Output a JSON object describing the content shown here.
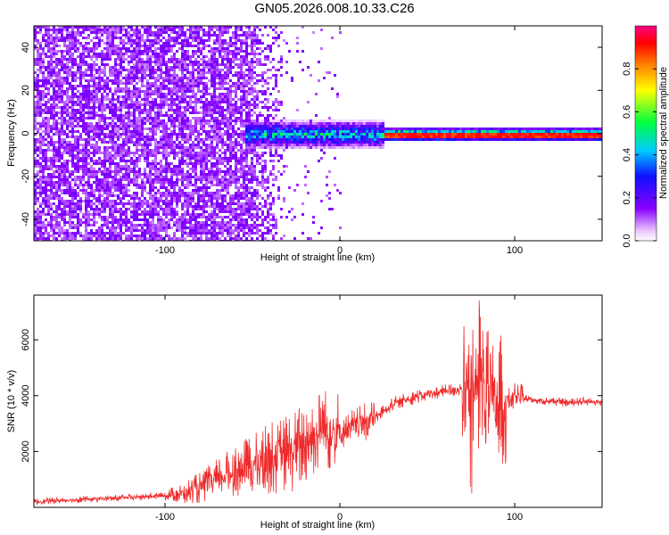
{
  "title": "GN05.2026.008.10.33.C26",
  "chart_data": [
    {
      "type": "heatmap",
      "xlabel": "Height of straight line (km)",
      "ylabel": "Frequency (Hz)",
      "xlim": [
        -175,
        150
      ],
      "ylim": [
        -50,
        50
      ],
      "xticks": [
        -100,
        0,
        100
      ],
      "yticks": [
        -40,
        -20,
        0,
        20,
        40
      ],
      "colorbar": {
        "label": "Normalized spectral amplitude",
        "range": [
          0,
          1
        ],
        "ticks": [
          "0.0",
          "0.2",
          "0.4",
          "0.6",
          "0.8"
        ]
      },
      "ridge_frequency_hz": 0,
      "noise_floor_region_km": [
        -175,
        -30
      ],
      "strong_signal_region_km": [
        20,
        150
      ]
    },
    {
      "type": "line",
      "xlabel": "Height of straight line (km)",
      "ylabel": "SNR (10 * v/v)",
      "xlim": [
        -175,
        150
      ],
      "ylim": [
        0,
        7600
      ],
      "xticks": [
        -100,
        0,
        100
      ],
      "yticks": [
        2000,
        4000,
        6000
      ],
      "series": [
        {
          "color": "#ee2a2a",
          "x": [
            -175,
            -150,
            -120,
            -100,
            -90,
            -80,
            -70,
            -60,
            -50,
            -40,
            -30,
            -20,
            -10,
            0,
            10,
            20,
            30,
            40,
            50,
            60,
            70,
            75,
            78,
            80,
            82,
            85,
            90,
            95,
            100,
            110,
            120,
            130,
            140,
            150
          ],
          "y": [
            200,
            280,
            350,
            420,
            500,
            700,
            1000,
            1300,
            1500,
            1800,
            1900,
            2300,
            2800,
            2700,
            2900,
            3200,
            3700,
            3900,
            4050,
            4150,
            4250,
            4100,
            4200,
            4600,
            4200,
            3900,
            3800,
            3800,
            3950,
            3850,
            3800,
            3750,
            3800,
            3750
          ]
        }
      ]
    }
  ]
}
